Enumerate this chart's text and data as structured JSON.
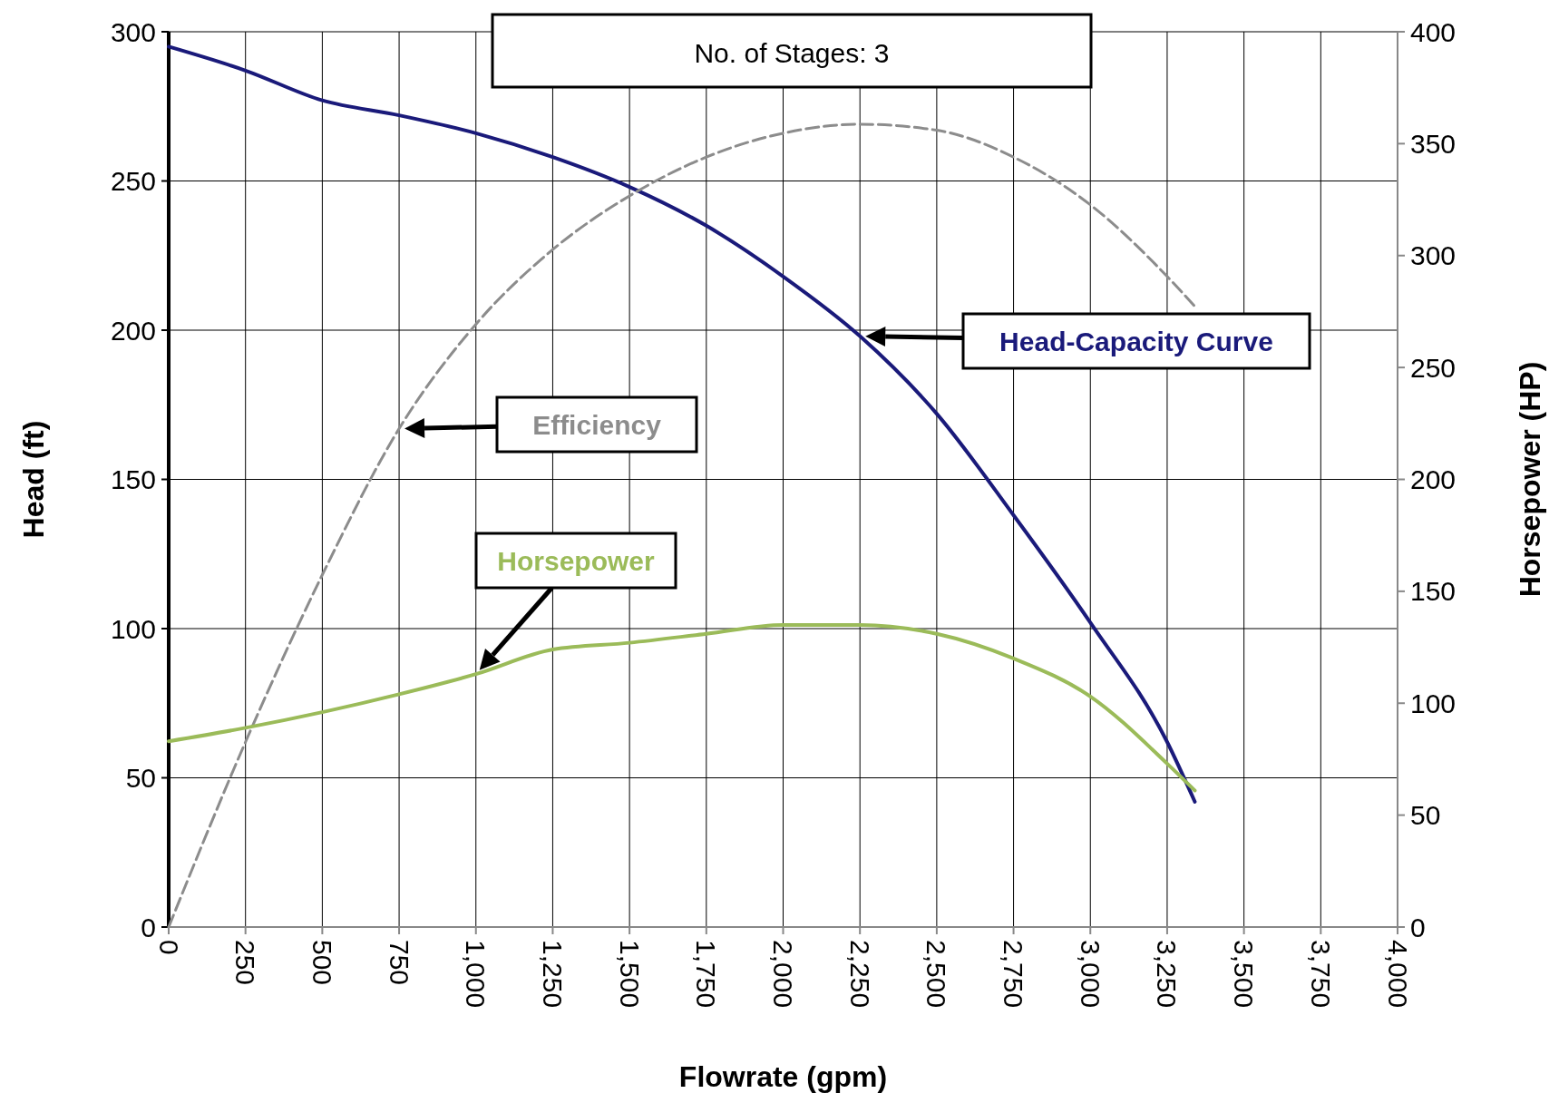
{
  "chart_data": {
    "type": "line",
    "title": "No. of Stages: 3",
    "xlabel": "Flowrate (gpm)",
    "ylabel": "Head (ft)",
    "y2label": "Horsepower (HP)",
    "xlim": [
      0,
      4000
    ],
    "xticks": [
      0,
      250,
      500,
      750,
      {
        "value": 1000,
        "label": "1,000"
      },
      {
        "value": 1250,
        "label": "1,250"
      },
      {
        "value": 1500,
        "label": "1,500"
      },
      {
        "value": 1750,
        "label": "1,750"
      },
      {
        "value": 2000,
        "label": "2,000"
      },
      {
        "value": 2250,
        "label": "2,250"
      },
      {
        "value": 2500,
        "label": "2,500"
      },
      {
        "value": 2750,
        "label": "2,750"
      },
      {
        "value": 3000,
        "label": "3,000"
      },
      {
        "value": 3250,
        "label": "3,250"
      },
      {
        "value": 3500,
        "label": "3,500"
      },
      {
        "value": 3750,
        "label": "3,750"
      },
      {
        "value": 4000,
        "label": "4,000"
      }
    ],
    "ylim": [
      0,
      300
    ],
    "yticks": [
      0,
      50,
      100,
      150,
      200,
      250,
      300
    ],
    "y2lim": [
      0,
      400
    ],
    "y2ticks": [
      0,
      50,
      100,
      150,
      200,
      250,
      300,
      350,
      400
    ],
    "grid": true,
    "marker": "none",
    "x": [
      0,
      250,
      500,
      750,
      1000,
      1250,
      1500,
      1750,
      2000,
      2250,
      2500,
      2750,
      3000,
      3250,
      3340
    ],
    "series": [
      {
        "name": "Head-Capacity Curve",
        "color": "#1a1a7a",
        "line_style": "solid",
        "values": [
          295,
          287,
          277,
          272,
          266,
          258,
          248,
          235,
          218,
          198,
          172,
          138,
          102,
          62,
          42
        ]
      },
      {
        "name": "Efficiency",
        "color": "#8c8c8c",
        "line_style": "dashed",
        "values": [
          0,
          62,
          118,
          167,
          202,
          227,
          245,
          258,
          266,
          269,
          267,
          258,
          242,
          218,
          208
        ]
      },
      {
        "name": "Horsepower",
        "color": "#9bbb59",
        "line_style": "solid",
        "axis": "y2",
        "values": [
          83,
          89,
          96,
          104,
          113,
          124,
          127,
          131,
          135,
          135,
          131,
          120,
          103,
          73,
          61
        ]
      }
    ]
  }
}
